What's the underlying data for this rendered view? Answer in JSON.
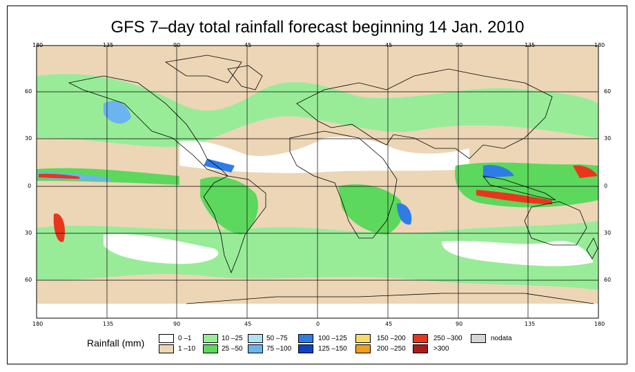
{
  "title": "GFS 7–day total rainfall forecast beginning 14 Jan. 2010",
  "axes": {
    "lon_labels": [
      "180",
      "135",
      "90",
      "45",
      "0",
      "45",
      "90",
      "135",
      "180"
    ],
    "lat_labels": [
      "60",
      "30",
      "0",
      "30",
      "60"
    ]
  },
  "legend": {
    "title": "Rainfall (mm)",
    "items": [
      {
        "label": "0 –1",
        "color": "#ffffff"
      },
      {
        "label": "1 –10",
        "color": "#ecd6b6"
      },
      {
        "label": "10 –25",
        "color": "#98ec98"
      },
      {
        "label": "25 –50",
        "color": "#5cd85c"
      },
      {
        "label": "50 –75",
        "color": "#aee2f4"
      },
      {
        "label": "75 –100",
        "color": "#6cb4f0"
      },
      {
        "label": "100 –125",
        "color": "#2f7ce6"
      },
      {
        "label": "125 –150",
        "color": "#1040c8"
      },
      {
        "label": "150 –200",
        "color": "#f6da6c"
      },
      {
        "label": "200 –250",
        "color": "#f49c1c"
      },
      {
        "label": "250 –300",
        "color": "#e8361c"
      },
      {
        "label": ">300",
        "color": "#a81c1c"
      },
      {
        "label": "nodata",
        "color": "#d6d6d6"
      }
    ]
  },
  "colors": {
    "ocean_dry": "#ffffff",
    "light": "#ecd6b6",
    "green_light": "#98ec98",
    "green": "#5cd85c",
    "blue_light": "#aee2f4",
    "blue": "#6cb4f0",
    "blue_dark": "#2f7ce6",
    "navy": "#1040c8",
    "yellow": "#f6da6c",
    "orange": "#f49c1c",
    "red": "#e8361c",
    "dark_red": "#a81c1c"
  }
}
